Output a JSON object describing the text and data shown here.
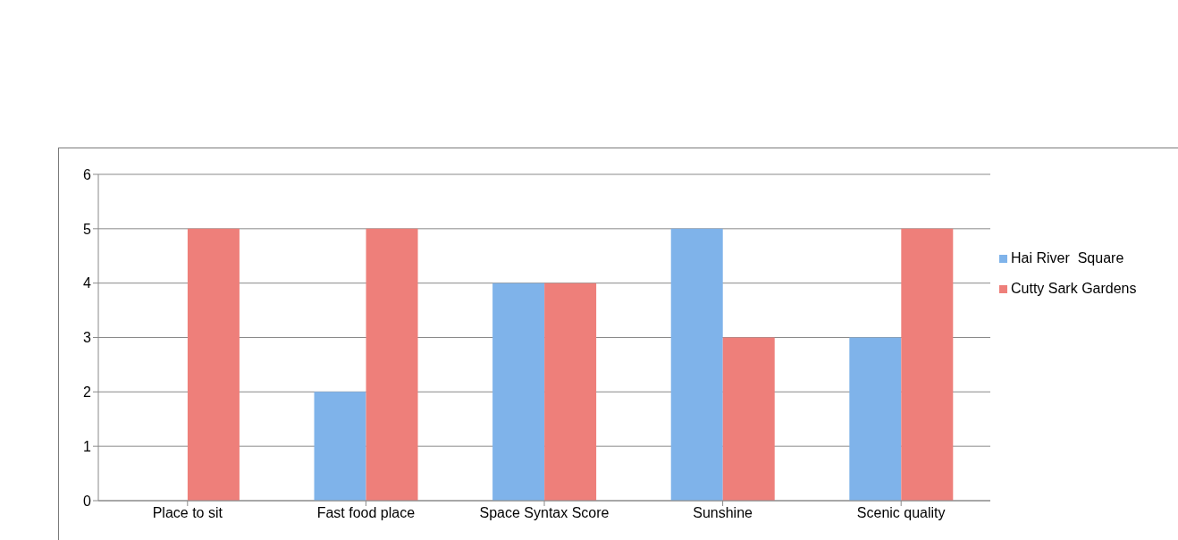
{
  "chart_data": {
    "type": "bar",
    "categories": [
      "Place to sit",
      "Fast food place",
      "Space Syntax Score",
      "Sunshine",
      "Scenic quality"
    ],
    "series": [
      {
        "name": "Hai River  Square",
        "color": "#7fb3ea",
        "values": [
          0,
          2,
          4,
          5,
          3
        ]
      },
      {
        "name": "Cutty Sark Gardens",
        "color": "#ee7f7a",
        "values": [
          5,
          5,
          4,
          3,
          5
        ]
      }
    ],
    "ylim": [
      0,
      6
    ],
    "yticks": [
      0,
      1,
      2,
      3,
      4,
      5,
      6
    ],
    "grid": "y",
    "legend": "right"
  }
}
